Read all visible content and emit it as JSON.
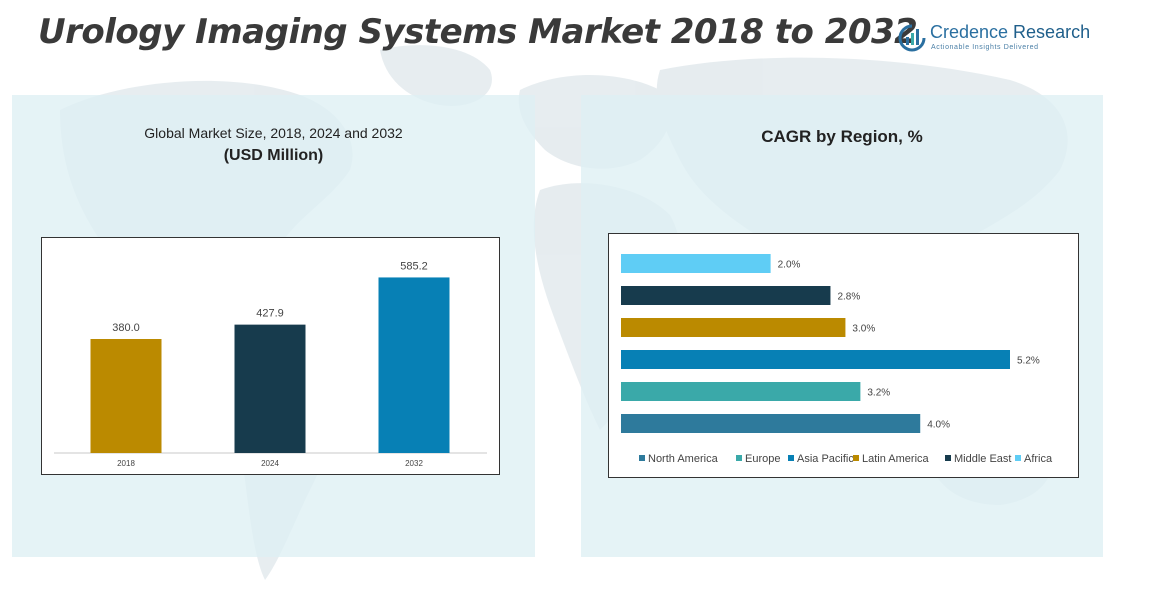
{
  "title": "Urology Imaging Systems Market 2018 to 2032",
  "logo": {
    "name_part1": "Credence",
    "name_part2": " Research",
    "tagline": "Actionable Insights Delivered"
  },
  "left_panel": {
    "subtitle": "Global Market Size, 2018, 2024 and 2032",
    "unit": "(USD Million)"
  },
  "right_panel": {
    "title": "CAGR by Region, %"
  },
  "colors": {
    "gold": "#bb8a00",
    "navy": "#173b4d",
    "blue": "#0780b5",
    "teal": "#3aa9a9",
    "steel": "#2e7a9c",
    "sky": "#5fcdf5",
    "panel": "#deeff4",
    "map": "#c9d6dd"
  },
  "chart_data": [
    {
      "type": "bar",
      "title": "Global Market Size, 2018, 2024 and 2032",
      "ylabel": "USD Million",
      "categories": [
        "2018",
        "2024",
        "2032"
      ],
      "values": [
        380.0,
        427.9,
        585.2
      ],
      "value_labels": [
        "380.0",
        "427.9",
        "585.2"
      ],
      "bar_colors": [
        "#bb8a00",
        "#173b4d",
        "#0780b5"
      ],
      "ylim": [
        0,
        650
      ],
      "grid": false,
      "legend": "none"
    },
    {
      "type": "bar",
      "orientation": "horizontal",
      "title": "CAGR by Region, %",
      "categories": [
        "Africa",
        "Middle East",
        "Latin America",
        "Asia Pacific",
        "Europe",
        "North America"
      ],
      "values": [
        2.0,
        2.8,
        3.0,
        5.2,
        3.2,
        4.0
      ],
      "value_labels": [
        "2.0%",
        "2.8%",
        "3.0%",
        "5.2%",
        "3.2%",
        "4.0%"
      ],
      "bar_colors": [
        "#5fcdf5",
        "#173b4d",
        "#bb8a00",
        "#0780b5",
        "#3aa9a9",
        "#2e7a9c"
      ],
      "xlim": [
        0,
        5.2
      ],
      "legend": "bottom",
      "legend_entries": [
        {
          "label": "North America",
          "color": "#2e7a9c"
        },
        {
          "label": "Europe",
          "color": "#3aa9a9"
        },
        {
          "label": "Asia Pacific",
          "color": "#0780b5"
        },
        {
          "label": "Latin America",
          "color": "#bb8a00"
        },
        {
          "label": "Middle East",
          "color": "#173b4d"
        },
        {
          "label": "Africa",
          "color": "#5fcdf5"
        }
      ]
    }
  ]
}
